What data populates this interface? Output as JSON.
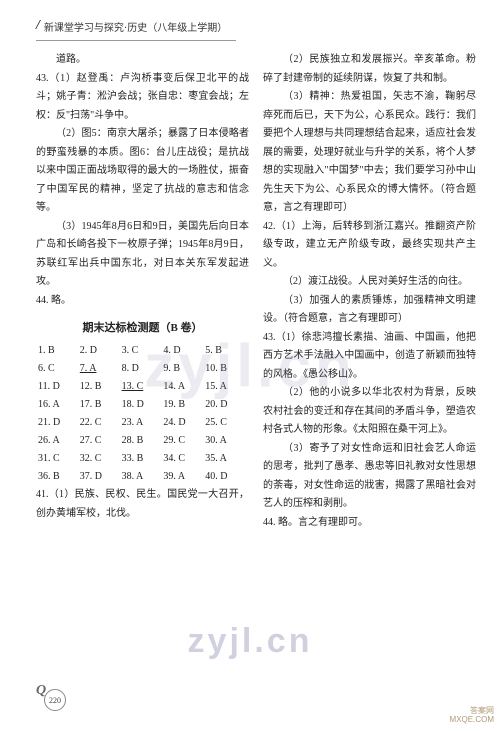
{
  "header": {
    "slash": "/",
    "text": "新课堂学习与探究·历史（八年级上学期）"
  },
  "left": {
    "p0": "道路。",
    "p1": "43.（1）赵登禹：卢沟桥事变后保卫北平的战斗；姚子青：淞沪会战；张自忠：枣宜会战；左权：反\"扫荡\"斗争中。",
    "p2": "（2）图5：南京大屠杀；暴露了日本侵略者的野蛮残暴的本质。图6：台儿庄战役；是抗战以来中国正面战场取得的最大的一场胜仗，振奋了中国军民的精神，坚定了抗战的意志和信念等。",
    "p3": "（3）1945年8月6日和9日，美国先后向日本广岛和长崎各投下一枚原子弹；1945年8月9日，苏联红军出兵中国东北，对日本关东军发起进攻。",
    "p4": "44. 略。",
    "section_title": "期末达标检测题（B 卷）",
    "choices": [
      [
        "1. B",
        "2. D",
        "3. C",
        "4. D",
        "5. B"
      ],
      [
        "6. C",
        "7. A",
        "8. D",
        "9. B",
        "10. B"
      ],
      [
        "11. D",
        "12. B",
        "13. C",
        "14. A",
        "15. A"
      ],
      [
        "16. A",
        "17. B",
        "18. D",
        "19. B",
        "20. D"
      ],
      [
        "21. D",
        "22. C",
        "23. A",
        "24. D",
        "25. C"
      ],
      [
        "26. A",
        "27. C",
        "28. B",
        "29. C",
        "30. A"
      ],
      [
        "31. C",
        "32. C",
        "33. B",
        "34. C",
        "35. A"
      ],
      [
        "36. B",
        "37. D",
        "38. A",
        "39. A",
        "40. D"
      ]
    ],
    "p5": "41.（1）民族、民权、民生。国民党一大召开，创办黄埔军校，北伐。"
  },
  "right": {
    "p1": "（2）民族独立和发展振兴。辛亥革命。粉碎了封建帝制的延续阴谋，恢复了共和制。",
    "p2": "（3）精神：热爱祖国，矢志不渝，鞠躬尽瘁死而后已，天下为公，心系民众。践行：我们要把个人理想与共同理想结合起来，适应社会发展的需要，处理好就业与升学的关系，将个人梦想的实现融入\"中国梦\"中去；我们要学习孙中山先生天下为公、心系民众的博大情怀。（符合题意，言之有理即可）",
    "p3": "42.（1）上海，后转移到浙江嘉兴。推翻资产阶级专政，建立无产阶级专政，最终实现共产主义。",
    "p4": "（2）渡江战役。人民对美好生活的向往。",
    "p5": "（3）加强人的素质锤炼，加强精神文明建设。（符合题意，言之有理即可）",
    "p6": "43.（1）徐悲鸿擅长素描、油画、中国画，他把西方艺术手法融入中国画中，创造了新颖而独特的风格。《愚公移山》。",
    "p7": "（2）他的小说多以华北农村为背景，反映农村社会的变迁和存在其间的矛盾斗争，塑造农村各式人物的形象。《太阳照在桑干河上》。",
    "p8": "（3）寄予了对女性命运和旧社会艺人命运的思考，批判了愚孝、愚忠等旧礼教对女性思想的荼毒，对女性命运的戕害，揭露了黑暗社会对艺人的压榨和剥削。",
    "p9": "44. 略。言之有理即可。"
  },
  "watermarks": {
    "center": "zyjl.cn",
    "bottom": "zyjl.cn"
  },
  "page_number": "220",
  "corner": {
    "l1": "答案网",
    "l2": "MXQE.COM"
  }
}
